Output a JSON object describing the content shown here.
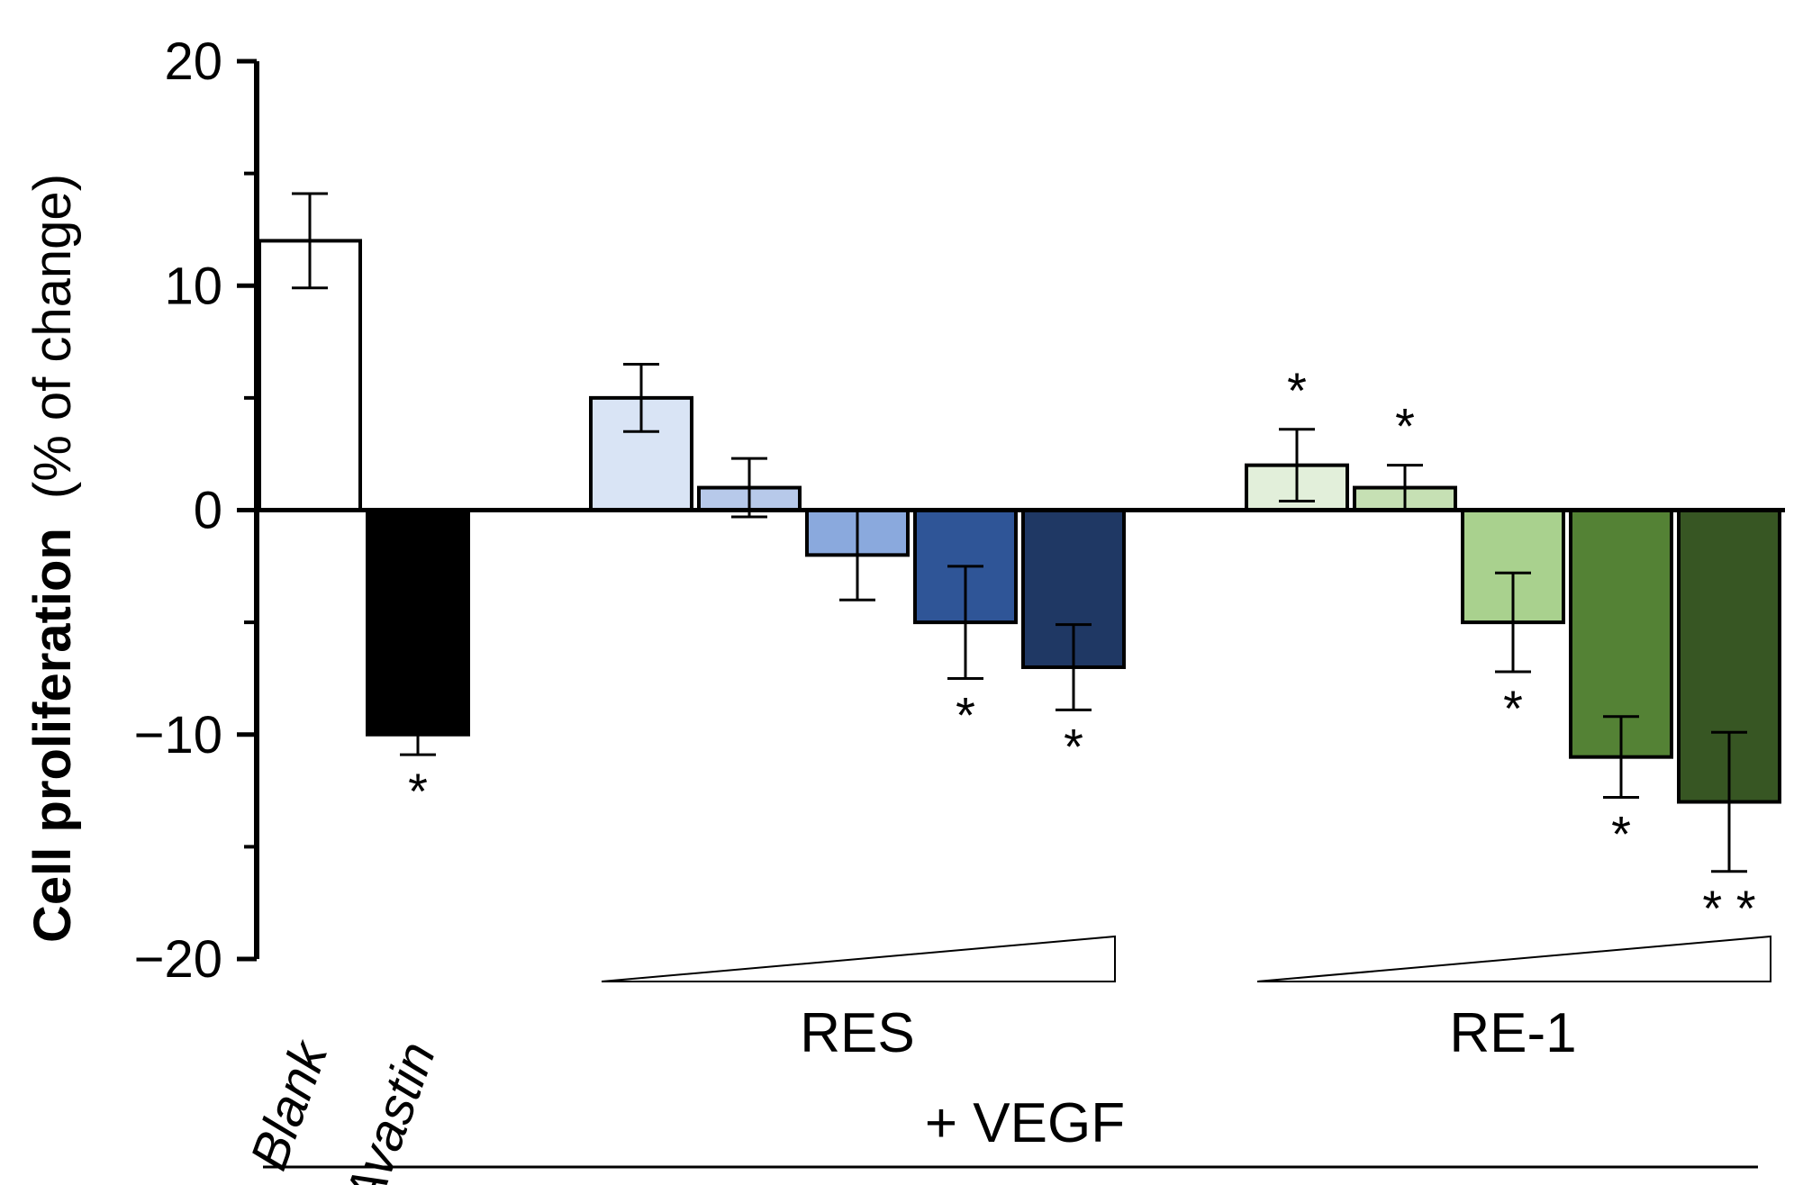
{
  "chart_data": {
    "type": "bar",
    "ylabel_bold": "Cell proliferation",
    "ylabel_rest": "(% of change)",
    "ylim": [
      -20,
      20
    ],
    "yticks": [
      20,
      10,
      0,
      -10,
      -20
    ],
    "ytick_labels": [
      "20",
      "10",
      "0",
      "−10",
      "−20"
    ],
    "bars": [
      {
        "label": "Blank",
        "value": 12,
        "err": 2.1,
        "sig": "",
        "color": "#ffffff"
      },
      {
        "label": "Avastin",
        "value": -10,
        "err": 0.9,
        "sig": "*",
        "color": "#000000"
      },
      {
        "label": "",
        "value": 5,
        "err": 1.5,
        "sig": "",
        "color": "#d9e4f5"
      },
      {
        "label": "",
        "value": 1,
        "err": 1.3,
        "sig": "",
        "color": "#b7c9ea"
      },
      {
        "label": "",
        "value": -2,
        "err": 2.0,
        "sig": "",
        "color": "#8aa9dd"
      },
      {
        "label": "",
        "value": -5,
        "err": 2.5,
        "sig": "*",
        "color": "#2f5597"
      },
      {
        "label": "",
        "value": -7,
        "err": 1.9,
        "sig": "*",
        "color": "#1f3864"
      },
      {
        "label": "",
        "value": 2,
        "err": 1.6,
        "sig": "*",
        "color": "#e2efda"
      },
      {
        "label": "",
        "value": 1,
        "err": 1.0,
        "sig": "*",
        "color": "#c6e0b4"
      },
      {
        "label": "",
        "value": -5,
        "err": 2.2,
        "sig": "*",
        "color": "#a9d18e"
      },
      {
        "label": "",
        "value": -11,
        "err": 1.8,
        "sig": "*",
        "color": "#548235"
      },
      {
        "label": "",
        "value": -13,
        "err": 3.1,
        "sig": "**",
        "color": "#375623"
      }
    ],
    "groups": [
      {
        "label": "RES",
        "bars": [
          2,
          3,
          4,
          5,
          6
        ]
      },
      {
        "label": "RE-1",
        "bars": [
          7,
          8,
          9,
          10,
          11
        ]
      }
    ],
    "bottom_label": "+ VEGF"
  }
}
